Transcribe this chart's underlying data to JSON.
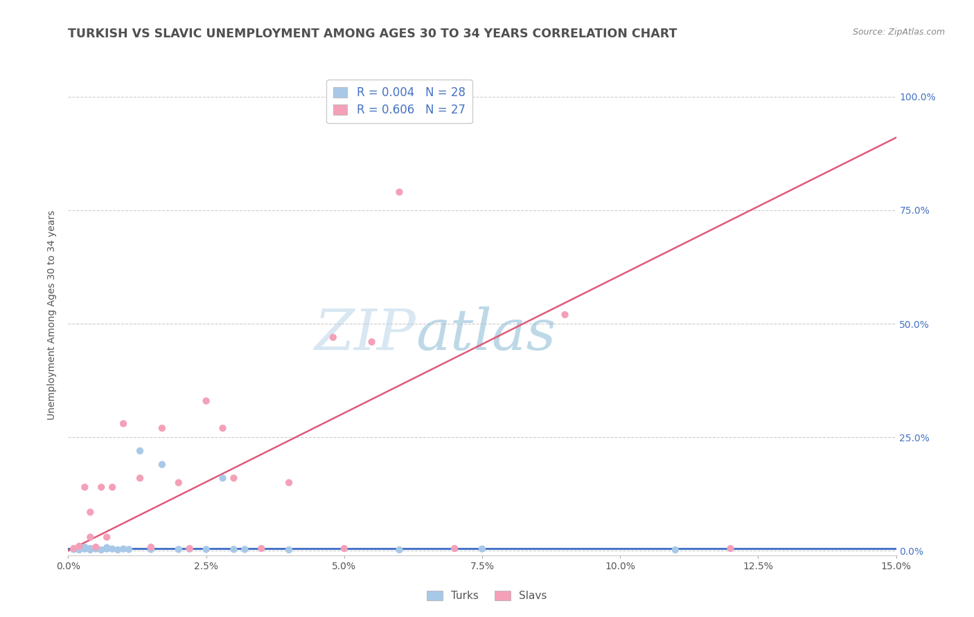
{
  "title": "TURKISH VS SLAVIC UNEMPLOYMENT AMONG AGES 30 TO 34 YEARS CORRELATION CHART",
  "source": "Source: ZipAtlas.com",
  "ylabel": "Unemployment Among Ages 30 to 34 years",
  "xlim": [
    0.0,
    0.15
  ],
  "ylim": [
    -0.01,
    1.05
  ],
  "ytick_labels": [
    "0.0%",
    "25.0%",
    "50.0%",
    "75.0%",
    "100.0%"
  ],
  "ytick_positions": [
    0.0,
    0.25,
    0.5,
    0.75,
    1.0
  ],
  "xtick_positions": [
    0.0,
    0.025,
    0.05,
    0.075,
    0.1,
    0.125,
    0.15
  ],
  "xtick_labels": [
    "0.0%",
    "2.5%",
    "5.0%",
    "7.5%",
    "10.0%",
    "12.5%",
    "15.0%"
  ],
  "turks_R": "0.004",
  "turks_N": "28",
  "slavs_R": "0.606",
  "slavs_N": "27",
  "turks_color": "#a8c8e8",
  "slavs_color": "#f4a0b8",
  "turks_line_color": "#3b6cc5",
  "slavs_line_color": "#e05878",
  "legend_label_turks": "Turks",
  "legend_label_slavs": "Slavs",
  "background_color": "#ffffff",
  "grid_color": "#cccccc",
  "title_color": "#505050",
  "tick_color": "#4472c4",
  "turks_scatter_x": [
    0.001,
    0.002,
    0.003,
    0.003,
    0.004,
    0.004,
    0.005,
    0.005,
    0.006,
    0.007,
    0.007,
    0.008,
    0.009,
    0.01,
    0.011,
    0.013,
    0.015,
    0.017,
    0.02,
    0.022,
    0.025,
    0.028,
    0.03,
    0.032,
    0.04,
    0.06,
    0.075,
    0.11
  ],
  "turks_scatter_y": [
    0.003,
    0.002,
    0.004,
    0.008,
    0.005,
    0.002,
    0.004,
    0.007,
    0.002,
    0.004,
    0.007,
    0.004,
    0.002,
    0.004,
    0.003,
    0.22,
    0.003,
    0.19,
    0.003,
    0.004,
    0.003,
    0.16,
    0.003,
    0.003,
    0.002,
    0.002,
    0.004,
    0.002
  ],
  "slavs_scatter_x": [
    0.001,
    0.002,
    0.003,
    0.004,
    0.004,
    0.005,
    0.006,
    0.007,
    0.008,
    0.01,
    0.013,
    0.015,
    0.017,
    0.02,
    0.022,
    0.025,
    0.028,
    0.03,
    0.035,
    0.04,
    0.048,
    0.05,
    0.055,
    0.06,
    0.07,
    0.09,
    0.12
  ],
  "slavs_scatter_y": [
    0.005,
    0.01,
    0.14,
    0.03,
    0.085,
    0.008,
    0.14,
    0.03,
    0.14,
    0.28,
    0.16,
    0.008,
    0.27,
    0.15,
    0.005,
    0.33,
    0.27,
    0.16,
    0.005,
    0.15,
    0.47,
    0.005,
    0.46,
    0.79,
    0.005,
    0.52,
    0.005
  ],
  "turks_line_x": [
    0.0,
    0.15
  ],
  "turks_line_y": [
    0.005,
    0.005
  ],
  "slavs_line_x": [
    0.0,
    0.15
  ],
  "slavs_line_y": [
    0.0,
    0.91
  ]
}
